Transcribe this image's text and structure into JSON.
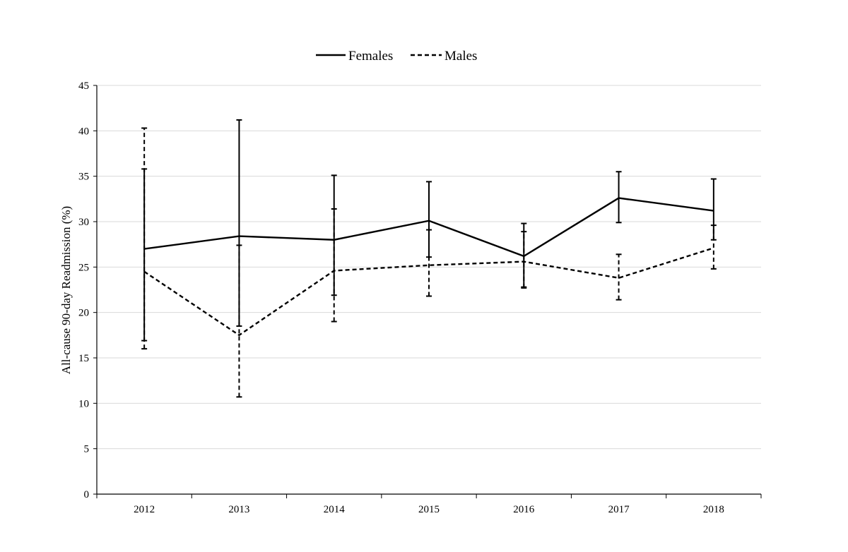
{
  "chart_data": {
    "type": "line",
    "title": "",
    "xlabel": "",
    "ylabel": "All-cause 90-day Readmission (%)",
    "categories": [
      "2012",
      "2013",
      "2014",
      "2015",
      "2016",
      "2017",
      "2018"
    ],
    "ylim": [
      0,
      45
    ],
    "yticks": [
      0,
      5,
      10,
      15,
      20,
      25,
      30,
      35,
      40,
      45
    ],
    "grid": true,
    "legend_position": "top-center",
    "series": [
      {
        "name": "Females",
        "line_style": "solid",
        "color": "#000000",
        "values": [
          27.0,
          28.4,
          28.0,
          30.1,
          26.2,
          32.6,
          31.2
        ],
        "error_low": [
          16.9,
          18.5,
          21.9,
          26.1,
          22.8,
          29.9,
          28.0
        ],
        "error_high": [
          35.8,
          41.2,
          35.1,
          34.4,
          29.8,
          35.5,
          34.7
        ]
      },
      {
        "name": "Males",
        "line_style": "dashed",
        "color": "#000000",
        "values": [
          24.5,
          17.5,
          24.6,
          25.2,
          25.6,
          23.8,
          27.1
        ],
        "error_low": [
          16.0,
          10.7,
          19.0,
          21.8,
          22.7,
          21.4,
          24.8
        ],
        "error_high": [
          40.3,
          27.4,
          31.4,
          29.1,
          28.9,
          26.4,
          29.6
        ]
      }
    ]
  }
}
